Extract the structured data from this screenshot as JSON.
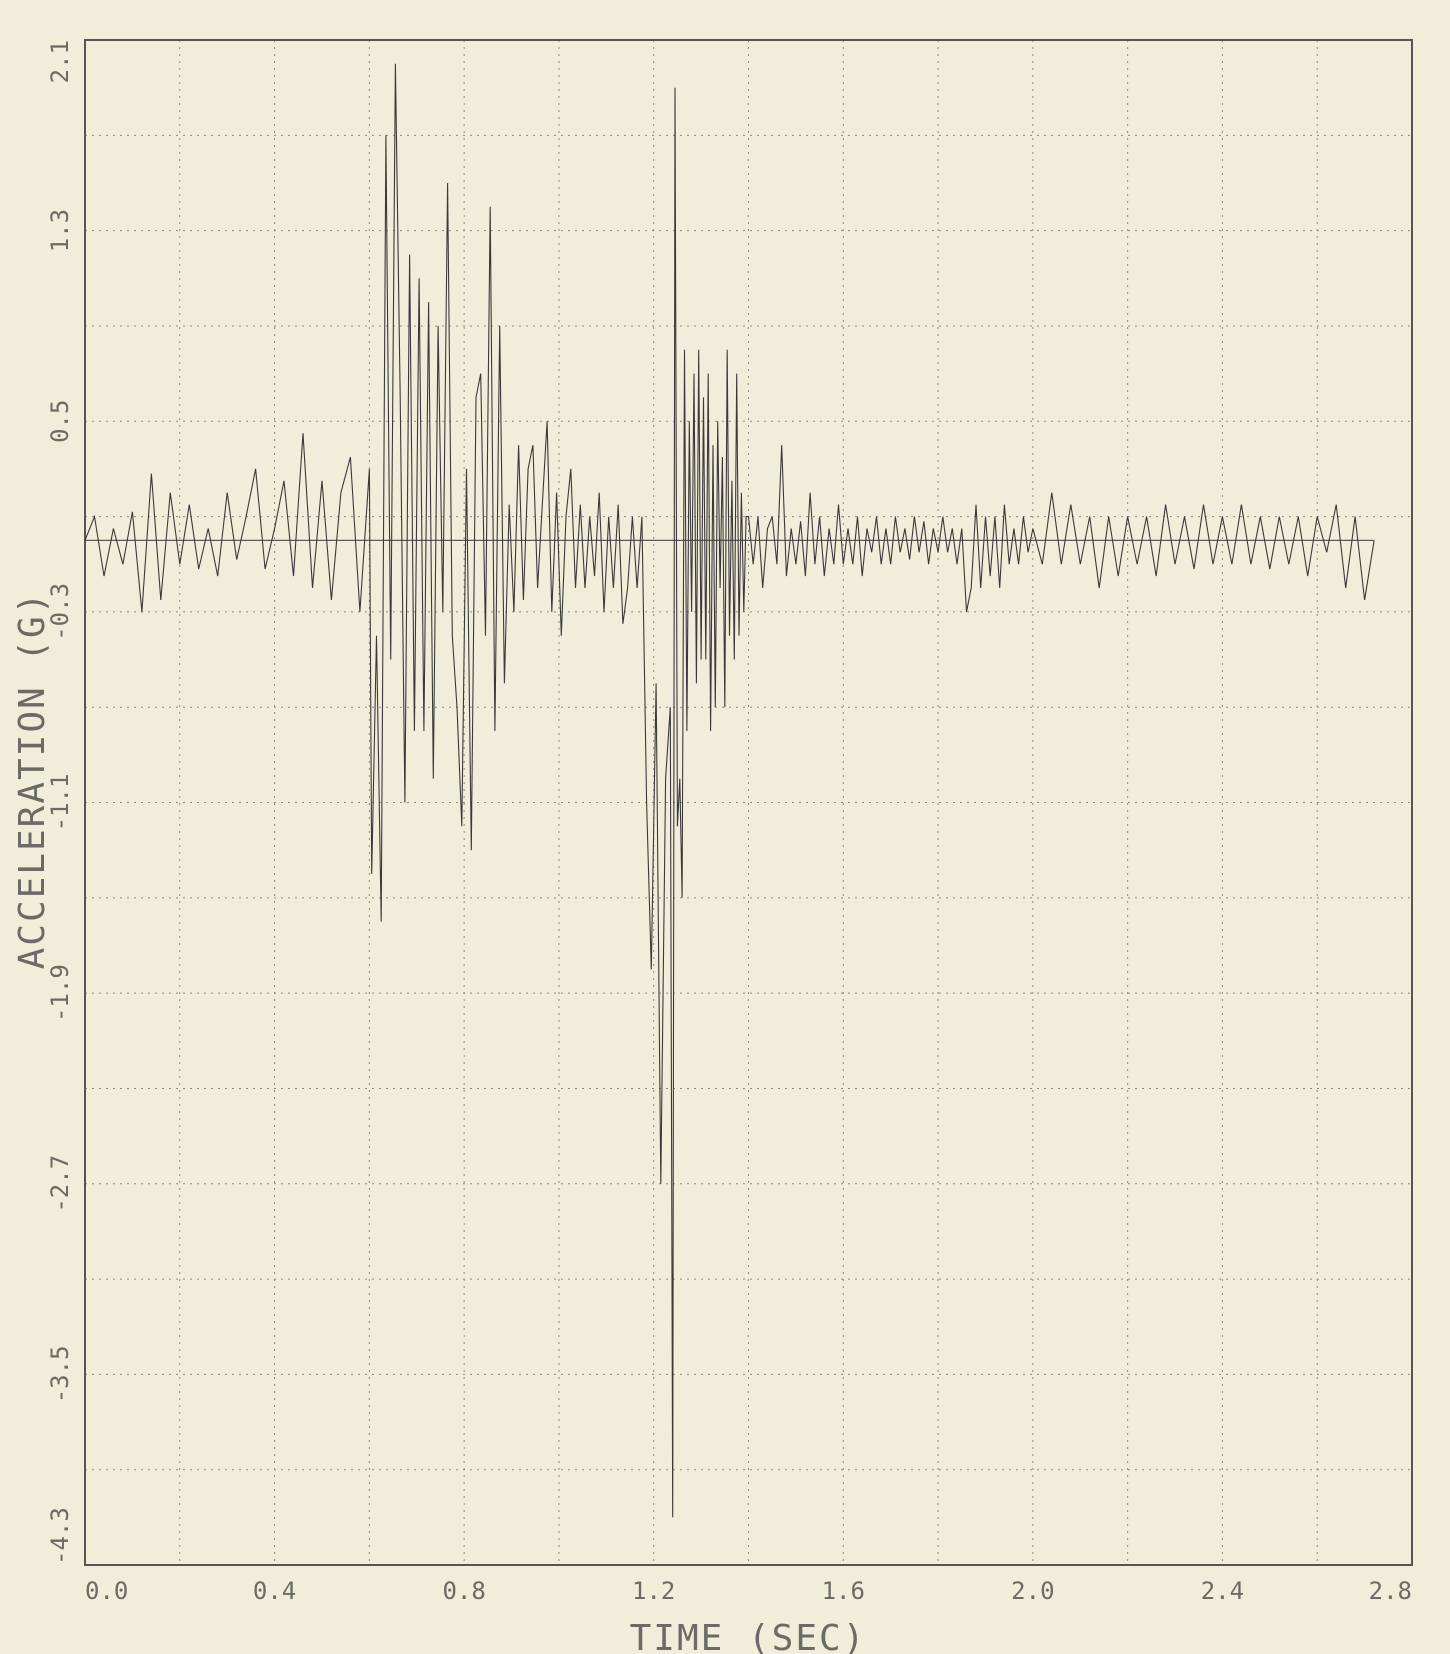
{
  "chart_data": {
    "type": "line",
    "title": "",
    "xlabel": "TIME   (SEC)",
    "ylabel": "ACCELERATION   (G)",
    "xlim": [
      0.0,
      2.8
    ],
    "ylim": [
      -4.3,
      2.1
    ],
    "x_ticks": [
      0.0,
      0.4,
      0.8,
      1.2,
      1.6,
      2.0,
      2.4,
      2.8
    ],
    "x_tick_labels": [
      "0.0",
      "0.4",
      "0.8",
      "1.2",
      "1.6",
      "2.0",
      "2.4",
      "2.8"
    ],
    "y_ticks": [
      -4.3,
      -3.5,
      -2.7,
      -1.9,
      -1.1,
      -0.3,
      0.5,
      1.3,
      2.1
    ],
    "y_tick_labels": [
      "-4.3",
      "-3.5",
      "-2.7",
      "-1.9",
      "-1.1",
      "-0.3",
      "0.5",
      "1.3",
      "2.1"
    ],
    "grid": true,
    "colors": {
      "background": "#f1eddb",
      "trace": "#3a3a3a",
      "grid": "#8a8a84",
      "text": "#6b6b66"
    },
    "series": [
      {
        "x": [
          0.0,
          0.02,
          0.04,
          0.06,
          0.08,
          0.1,
          0.12,
          0.14,
          0.16,
          0.18,
          0.2,
          0.22,
          0.24,
          0.26,
          0.28,
          0.3,
          0.32,
          0.34,
          0.36,
          0.38,
          0.4,
          0.42,
          0.44,
          0.46,
          0.48,
          0.5,
          0.52,
          0.54,
          0.56,
          0.58,
          0.6,
          0.605,
          0.615,
          0.625,
          0.635,
          0.645,
          0.655,
          0.665,
          0.675,
          0.685,
          0.695,
          0.705,
          0.715,
          0.725,
          0.735,
          0.745,
          0.755,
          0.765,
          0.775,
          0.785,
          0.795,
          0.805,
          0.815,
          0.825,
          0.835,
          0.845,
          0.855,
          0.865,
          0.875,
          0.885,
          0.895,
          0.905,
          0.915,
          0.925,
          0.935,
          0.945,
          0.955,
          0.965,
          0.975,
          0.985,
          0.995,
          1.005,
          1.015,
          1.025,
          1.035,
          1.045,
          1.055,
          1.065,
          1.075,
          1.085,
          1.095,
          1.105,
          1.115,
          1.125,
          1.135,
          1.145,
          1.155,
          1.165,
          1.175,
          1.185,
          1.195,
          1.205,
          1.215,
          1.225,
          1.235,
          1.24,
          1.245,
          1.25,
          1.255,
          1.26,
          1.265,
          1.27,
          1.275,
          1.28,
          1.285,
          1.29,
          1.295,
          1.3,
          1.305,
          1.31,
          1.315,
          1.32,
          1.325,
          1.33,
          1.335,
          1.34,
          1.345,
          1.35,
          1.355,
          1.36,
          1.365,
          1.37,
          1.375,
          1.38,
          1.385,
          1.39,
          1.395,
          1.4,
          1.41,
          1.42,
          1.43,
          1.44,
          1.45,
          1.46,
          1.47,
          1.48,
          1.49,
          1.5,
          1.51,
          1.52,
          1.53,
          1.54,
          1.55,
          1.56,
          1.57,
          1.58,
          1.59,
          1.6,
          1.61,
          1.62,
          1.63,
          1.64,
          1.65,
          1.66,
          1.67,
          1.68,
          1.69,
          1.7,
          1.71,
          1.72,
          1.73,
          1.74,
          1.75,
          1.76,
          1.77,
          1.78,
          1.79,
          1.8,
          1.81,
          1.82,
          1.83,
          1.84,
          1.85,
          1.86,
          1.87,
          1.88,
          1.89,
          1.9,
          1.91,
          1.92,
          1.93,
          1.94,
          1.95,
          1.96,
          1.97,
          1.98,
          1.99,
          2.0,
          2.02,
          2.04,
          2.06,
          2.08,
          2.1,
          2.12,
          2.14,
          2.16,
          2.18,
          2.2,
          2.22,
          2.24,
          2.26,
          2.28,
          2.3,
          2.32,
          2.34,
          2.36,
          2.38,
          2.4,
          2.42,
          2.44,
          2.46,
          2.48,
          2.5,
          2.52,
          2.54,
          2.56,
          2.58,
          2.6,
          2.62,
          2.64,
          2.66,
          2.68,
          2.7,
          2.72
        ],
        "y": [
          0.0,
          0.1,
          -0.15,
          0.05,
          -0.1,
          0.12,
          -0.3,
          0.28,
          -0.25,
          0.2,
          -0.1,
          0.15,
          -0.12,
          0.05,
          -0.15,
          0.2,
          -0.08,
          0.1,
          0.3,
          -0.12,
          0.05,
          0.25,
          -0.15,
          0.45,
          -0.2,
          0.25,
          -0.25,
          0.2,
          0.35,
          -0.3,
          0.3,
          -1.4,
          -0.4,
          -1.6,
          1.7,
          -0.5,
          2.0,
          0.6,
          -1.1,
          1.2,
          -0.8,
          1.1,
          -0.8,
          1.0,
          -1.0,
          0.9,
          -0.3,
          1.5,
          -0.4,
          -0.7,
          -1.2,
          0.3,
          -1.3,
          0.6,
          0.7,
          -0.4,
          1.4,
          -0.8,
          0.9,
          -0.6,
          0.15,
          -0.3,
          0.4,
          -0.25,
          0.3,
          0.4,
          -0.2,
          0.15,
          0.5,
          -0.3,
          0.2,
          -0.4,
          0.1,
          0.3,
          -0.2,
          0.15,
          -0.2,
          0.1,
          -0.15,
          0.2,
          -0.3,
          0.1,
          -0.2,
          0.15,
          -0.35,
          -0.2,
          0.1,
          -0.2,
          0.1,
          -1.1,
          -1.8,
          -0.6,
          -2.7,
          -1.0,
          -0.7,
          -4.1,
          1.9,
          -1.2,
          -1.0,
          -1.5,
          0.8,
          -0.8,
          0.5,
          -0.3,
          0.7,
          -0.6,
          0.8,
          -0.5,
          0.6,
          -0.5,
          0.7,
          -0.8,
          0.4,
          -0.7,
          0.5,
          -0.2,
          0.35,
          -0.7,
          0.8,
          -0.4,
          0.25,
          -0.5,
          0.7,
          -0.4,
          0.2,
          -0.3,
          0.1,
          0.1,
          -0.1,
          0.1,
          -0.2,
          0.05,
          0.1,
          -0.1,
          0.4,
          -0.15,
          0.05,
          -0.1,
          0.08,
          -0.15,
          0.2,
          -0.1,
          0.1,
          -0.15,
          0.05,
          -0.1,
          0.15,
          -0.1,
          0.05,
          -0.1,
          0.1,
          -0.15,
          0.05,
          -0.05,
          0.1,
          -0.1,
          0.05,
          -0.1,
          0.1,
          -0.05,
          0.05,
          -0.08,
          0.1,
          -0.05,
          0.08,
          -0.1,
          0.05,
          -0.05,
          0.1,
          -0.05,
          0.05,
          -0.1,
          0.05,
          -0.3,
          -0.2,
          0.15,
          -0.2,
          0.1,
          -0.15,
          0.1,
          -0.2,
          0.15,
          -0.1,
          0.05,
          -0.1,
          0.1,
          -0.05,
          0.05,
          -0.1,
          0.2,
          -0.1,
          0.15,
          -0.1,
          0.1,
          -0.2,
          0.1,
          -0.15,
          0.1,
          -0.1,
          0.1,
          -0.15,
          0.15,
          -0.1,
          0.1,
          -0.12,
          0.15,
          -0.1,
          0.1,
          -0.1,
          0.15,
          -0.1,
          0.1,
          -0.12,
          0.1,
          -0.1,
          0.1,
          -0.15,
          0.1,
          -0.05,
          0.15,
          -0.2,
          0.1,
          -0.25,
          0.0
        ]
      }
    ]
  }
}
